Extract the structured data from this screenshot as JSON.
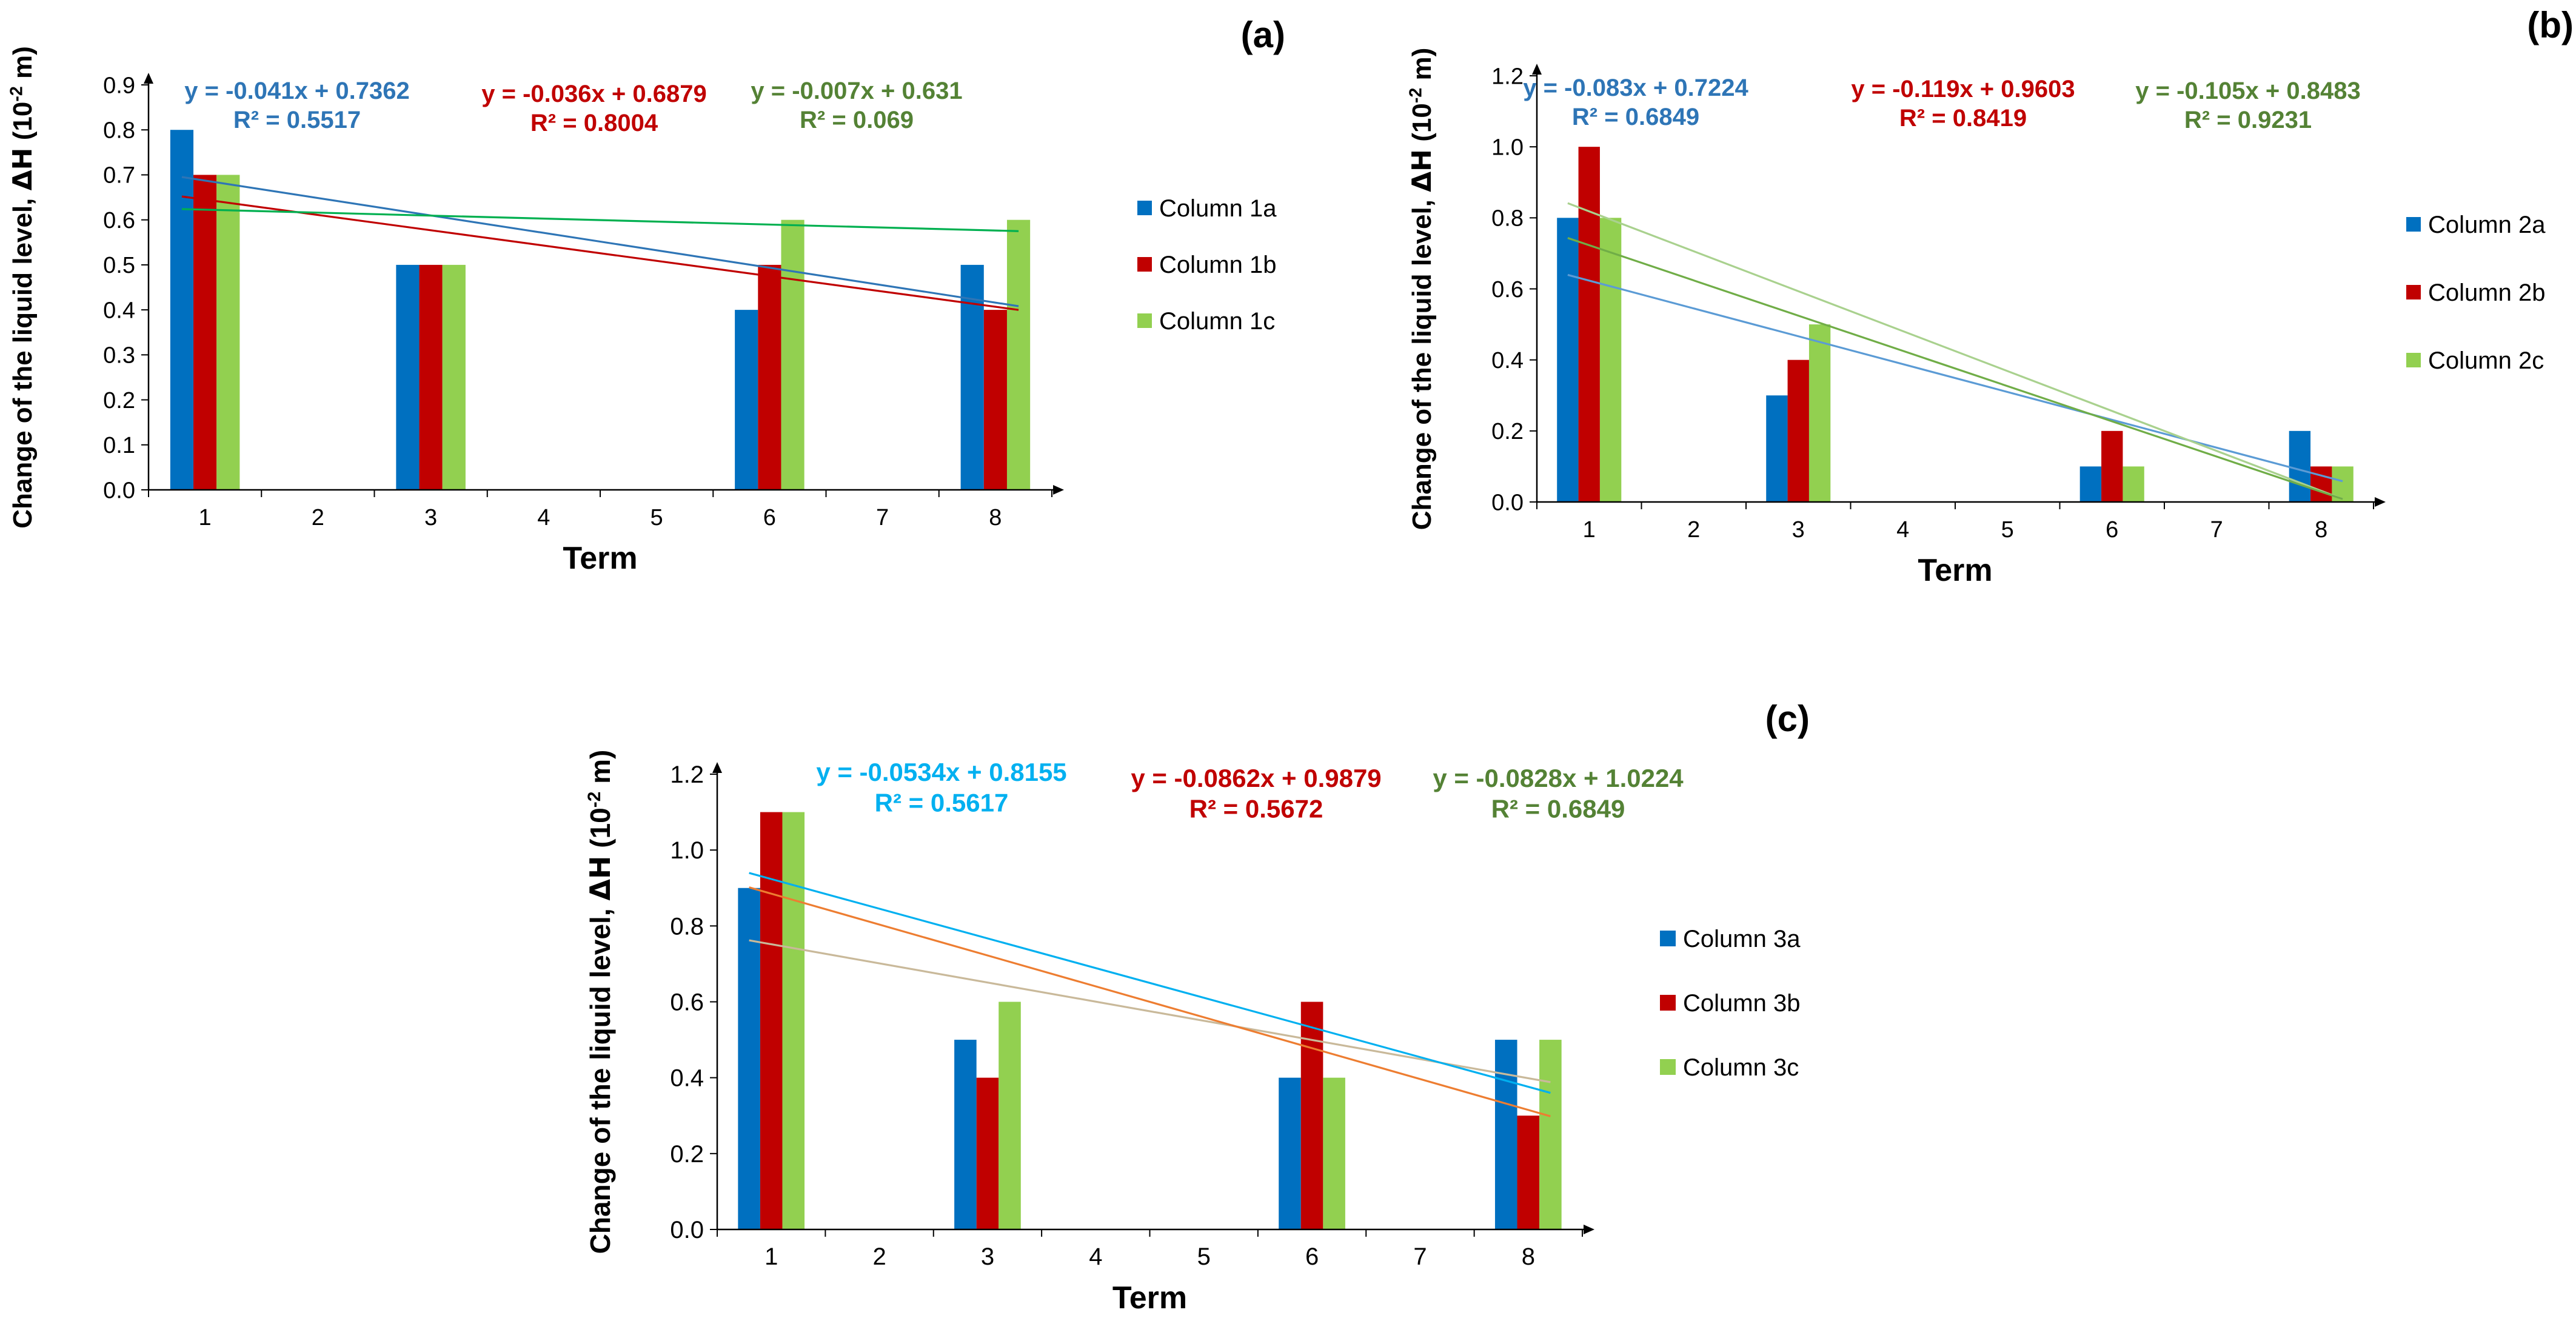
{
  "chart_data": [
    {
      "panel_label": "(a)",
      "type": "bar",
      "xlabel": "Term",
      "ylabel_main": "Change of the liquid level, ",
      "ylabel_delta": "ΔH",
      "ylabel_unit": " (10",
      "ylabel_sup": "-2",
      "ylabel_end": " m)",
      "categories": [
        "1",
        "2",
        "3",
        "4",
        "5",
        "6",
        "7",
        "8"
      ],
      "ylim": [
        0,
        0.9
      ],
      "yticks": [
        "0.0",
        "0.1",
        "0.2",
        "0.3",
        "0.4",
        "0.5",
        "0.6",
        "0.7",
        "0.8",
        "0.9"
      ],
      "tick_step": 0.1,
      "series": [
        {
          "name": "Column 1a",
          "color": "#0070C0",
          "values": [
            0.8,
            null,
            0.5,
            null,
            null,
            0.4,
            null,
            0.5
          ],
          "trend": {
            "slope": -0.041,
            "intercept": 0.7362,
            "color": "#2E75B6",
            "equation": "y = -0.041x + 0.7362",
            "r2": "R² = 0.5517",
            "label_color": "#2E75B6"
          }
        },
        {
          "name": "Column 1b",
          "color": "#C00000",
          "values": [
            0.7,
            null,
            0.5,
            null,
            null,
            0.5,
            null,
            0.4
          ],
          "trend": {
            "slope": -0.036,
            "intercept": 0.6879,
            "color": "#C00000",
            "equation": "y = -0.036x + 0.6879",
            "r2": "R² = 0.8004",
            "label_color": "#C00000"
          }
        },
        {
          "name": "Column 1c",
          "color": "#92D050",
          "values": [
            0.7,
            null,
            0.5,
            null,
            null,
            0.6,
            null,
            0.6
          ],
          "trend": {
            "slope": -0.007,
            "intercept": 0.631,
            "color": "#00B050",
            "equation": "y = -0.007x + 0.631",
            "r2": "R² = 0.069",
            "label_color": "#548235"
          }
        }
      ]
    },
    {
      "panel_label": "(b)",
      "type": "bar",
      "xlabel": "Term",
      "ylabel_main": "Change of the liquid level, ",
      "ylabel_delta": "ΔH",
      "ylabel_unit": " (10",
      "ylabel_sup": "-2",
      "ylabel_end": " m)",
      "categories": [
        "1",
        "2",
        "3",
        "4",
        "5",
        "6",
        "7",
        "8"
      ],
      "ylim": [
        0,
        1.2
      ],
      "yticks": [
        "0.0",
        "0.2",
        "0.4",
        "0.6",
        "0.8",
        "1.0",
        "1.2"
      ],
      "tick_step": 0.2,
      "series": [
        {
          "name": "Column 2a",
          "color": "#0070C0",
          "values": [
            0.8,
            null,
            0.3,
            null,
            null,
            0.1,
            null,
            0.2
          ],
          "trend": {
            "slope": -0.083,
            "intercept": 0.7224,
            "color": "#5B9BD5",
            "equation": "y = -0.083x + 0.7224",
            "r2": "R² = 0.6849",
            "label_color": "#2E75B6"
          }
        },
        {
          "name": "Column 2b",
          "color": "#C00000",
          "values": [
            1.0,
            null,
            0.4,
            null,
            null,
            0.2,
            null,
            0.1
          ],
          "trend": {
            "slope": -0.119,
            "intercept": 0.9603,
            "color": "#A9D18E",
            "equation": "y = -0.119x + 0.9603",
            "r2": "R² = 0.8419",
            "label_color": "#C00000"
          }
        },
        {
          "name": "Column 2c",
          "color": "#92D050",
          "values": [
            0.8,
            null,
            0.5,
            null,
            null,
            0.1,
            null,
            0.1
          ],
          "trend": {
            "slope": -0.105,
            "intercept": 0.8483,
            "color": "#70AD47",
            "equation": "y = -0.105x + 0.8483",
            "r2": "R² = 0.9231",
            "label_color": "#548235"
          }
        }
      ]
    },
    {
      "panel_label": "(c)",
      "type": "bar",
      "xlabel": "Term",
      "ylabel_main": "Change of the liquid level, ",
      "ylabel_delta": "ΔH",
      "ylabel_unit": " (10",
      "ylabel_sup": "-2",
      "ylabel_end": " m)",
      "categories": [
        "1",
        "2",
        "3",
        "4",
        "5",
        "6",
        "7",
        "8"
      ],
      "ylim": [
        0,
        1.2
      ],
      "yticks": [
        "0.0",
        "0.2",
        "0.4",
        "0.6",
        "0.8",
        "1.0",
        "1.2"
      ],
      "tick_step": 0.2,
      "series": [
        {
          "name": "Column 3a",
          "color": "#0070C0",
          "values": [
            0.9,
            null,
            0.5,
            null,
            null,
            0.4,
            null,
            0.5
          ],
          "trend": {
            "slope": -0.0534,
            "intercept": 0.8155,
            "color": "#C9B99A",
            "equation": "y = -0.0534x + 0.8155",
            "r2": "R² = 0.5617",
            "label_color": "#00B0F0"
          }
        },
        {
          "name": "Column 3b",
          "color": "#C00000",
          "values": [
            1.1,
            null,
            0.4,
            null,
            null,
            0.6,
            null,
            0.3
          ],
          "trend": {
            "slope": -0.0862,
            "intercept": 0.9879,
            "color": "#ED7D31",
            "equation": "y = -0.0862x + 0.9879",
            "r2": "R² = 0.5672",
            "label_color": "#C00000"
          }
        },
        {
          "name": "Column 3c",
          "color": "#92D050",
          "values": [
            1.1,
            null,
            0.6,
            null,
            null,
            0.4,
            null,
            0.5
          ],
          "trend": {
            "slope": -0.0828,
            "intercept": 1.0224,
            "color": "#00B0F0",
            "equation": "y = -0.0828x + 1.0224",
            "r2": "R² = 0.6849",
            "label_color": "#548235"
          }
        }
      ]
    }
  ]
}
